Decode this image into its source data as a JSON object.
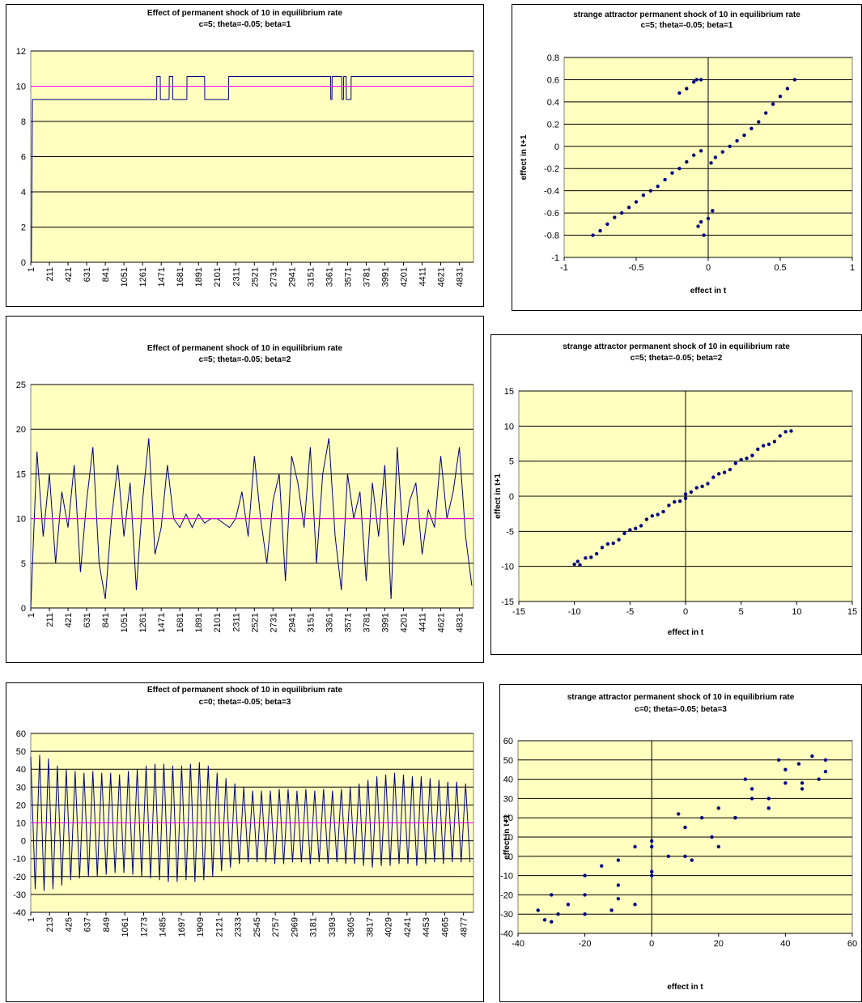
{
  "chart_data": [
    {
      "type": "line",
      "title": "Effect of permanent shock of 10 in equilibrium rate",
      "subtitle": "c=5; theta=-0.05; beta=1",
      "series": [
        {
          "color": "#000080",
          "x": [
            1,
            8,
            20,
            1420,
            1422,
            1460,
            1462,
            1560,
            1562,
            1600,
            1602,
            1760,
            1762,
            1960,
            1962,
            2230,
            2232,
            3380,
            3382,
            3395,
            3397,
            3505,
            3507,
            3525,
            3527,
            3555,
            3557,
            3610,
            3612,
            4990
          ],
          "values": [
            0,
            0,
            9.25,
            9.25,
            10.55,
            10.55,
            9.25,
            9.25,
            10.55,
            10.55,
            9.25,
            9.25,
            10.55,
            10.55,
            9.25,
            9.25,
            10.55,
            10.55,
            9.25,
            9.25,
            10.55,
            10.55,
            9.25,
            9.25,
            10.55,
            10.55,
            9.25,
            9.25,
            10.55,
            10.55
          ]
        },
        {
          "color": "#ff00ff",
          "x": [
            1,
            4990
          ],
          "values": [
            10,
            10
          ]
        }
      ],
      "xlim": [
        1,
        4990
      ],
      "ylim": [
        0,
        12
      ],
      "xticks": [
        1,
        211,
        421,
        631,
        841,
        1051,
        1261,
        1471,
        1681,
        1891,
        2101,
        2311,
        2521,
        2731,
        2941,
        3151,
        3361,
        3571,
        3781,
        3991,
        4201,
        4411,
        4621,
        4831
      ],
      "yticks": [
        0,
        2,
        4,
        6,
        8,
        10,
        12
      ],
      "grid": true
    },
    {
      "type": "scatter",
      "title": "strange attractor permanent shock of 10 in equilibrium rate",
      "subtitle": "c=5; theta=-0.05; beta=1",
      "xlabel": "effect in t",
      "ylabel": "effect in t+1",
      "series": [
        {
          "color": "#000080",
          "x": [
            -0.8,
            -0.75,
            -0.7,
            -0.65,
            -0.6,
            -0.55,
            -0.5,
            -0.45,
            -0.4,
            -0.35,
            -0.3,
            -0.25,
            -0.2,
            -0.15,
            -0.1,
            -0.05,
            0.02,
            0.05,
            0.1,
            0.15,
            0.2,
            0.25,
            0.3,
            0.35,
            0.4,
            0.45,
            0.5,
            0.55,
            0.6,
            -0.2,
            -0.15,
            -0.1,
            -0.08,
            -0.05,
            -0.03,
            -0.07,
            -0.05,
            0,
            0.03
          ],
          "values": [
            -0.8,
            -0.76,
            -0.7,
            -0.64,
            -0.6,
            -0.55,
            -0.5,
            -0.44,
            -0.4,
            -0.36,
            -0.3,
            -0.24,
            -0.2,
            -0.14,
            -0.08,
            -0.04,
            -0.15,
            -0.1,
            -0.05,
            0.0,
            0.05,
            0.1,
            0.16,
            0.22,
            0.3,
            0.38,
            0.45,
            0.52,
            0.6,
            0.48,
            0.52,
            0.58,
            0.6,
            0.6,
            -0.8,
            -0.72,
            -0.68,
            -0.65,
            -0.58
          ]
        }
      ],
      "xlim": [
        -1,
        1
      ],
      "ylim": [
        -1,
        0.8
      ],
      "xticks": [
        -1,
        -0.5,
        0,
        0.5,
        1
      ],
      "yticks": [
        -1,
        -0.8,
        -0.6,
        -0.4,
        -0.2,
        0,
        0.2,
        0.4,
        0.6,
        0.8
      ],
      "grid": true
    },
    {
      "type": "line",
      "title": "Effect of permanent shock of 10 in equilibrium rate",
      "subtitle": "c=5; theta=-0.05; beta=2",
      "series": [
        {
          "color": "#000080",
          "x": [
            1,
            71,
            141,
            211,
            281,
            351,
            421,
            491,
            561,
            631,
            701,
            771,
            841,
            911,
            981,
            1051,
            1121,
            1191,
            1261,
            1331,
            1401,
            1471,
            1541,
            1611,
            1681,
            1751,
            1821,
            1891,
            1961,
            2031,
            2101,
            2171,
            2241,
            2311,
            2381,
            2451,
            2521,
            2591,
            2661,
            2731,
            2801,
            2871,
            2941,
            3011,
            3081,
            3151,
            3221,
            3291,
            3361,
            3431,
            3501,
            3571,
            3641,
            3711,
            3781,
            3851,
            3921,
            3991,
            4061,
            4131,
            4201,
            4271,
            4341,
            4411,
            4481,
            4551,
            4621,
            4691,
            4761,
            4831,
            4901,
            4971
          ],
          "values": [
            0,
            17.5,
            8,
            15,
            5,
            13,
            9,
            16,
            4,
            12,
            18,
            5,
            1,
            10,
            16,
            8,
            14,
            2,
            12,
            19,
            6,
            9,
            16,
            10,
            9,
            10.5,
            9,
            10.5,
            9.5,
            10,
            10,
            9.5,
            9,
            10,
            13,
            8,
            17,
            10,
            5,
            12,
            15,
            3,
            17,
            14,
            9,
            18,
            5,
            15,
            19,
            8,
            2,
            15,
            10,
            13,
            3,
            14,
            8,
            16,
            1,
            18,
            7,
            12,
            14,
            6,
            11,
            9,
            17,
            10,
            13,
            18,
            8,
            2.5
          ]
        },
        {
          "color": "#ff00ff",
          "x": [
            1,
            4990
          ],
          "values": [
            10,
            10
          ]
        }
      ],
      "xlim": [
        1,
        4990
      ],
      "ylim": [
        0,
        25
      ],
      "xticks": [
        1,
        211,
        421,
        631,
        841,
        1051,
        1261,
        1471,
        1681,
        1891,
        2101,
        2311,
        2521,
        2731,
        2941,
        3151,
        3361,
        3571,
        3781,
        3991,
        4201,
        4411,
        4621,
        4831
      ],
      "yticks": [
        0,
        5,
        10,
        15,
        20,
        25
      ],
      "grid": true
    },
    {
      "type": "scatter",
      "title": "strange attractor permanent shock of 10 in equilibrium rate",
      "subtitle": "c=5; theta=-0.05; beta=2",
      "xlabel": "effect in t",
      "ylabel": "effect in t+1",
      "series": [
        {
          "color": "#000080",
          "x": [
            -10,
            -9.7,
            -9.5,
            -9,
            -8.5,
            -8,
            -7.5,
            -7,
            -6.5,
            -6,
            -5.5,
            -5,
            -4.5,
            -4,
            -3.5,
            -3,
            -2.5,
            -2,
            -1.5,
            -1,
            -0.5,
            0,
            0,
            0.5,
            1,
            1.5,
            2,
            2.5,
            3,
            3.5,
            4,
            4.5,
            5,
            5.5,
            6,
            6.5,
            7,
            7.5,
            8,
            8.5,
            9,
            9.5
          ],
          "values": [
            -9.7,
            -9.3,
            -9.8,
            -8.8,
            -8.7,
            -8.2,
            -7.3,
            -6.8,
            -6.7,
            -6.2,
            -5.3,
            -4.8,
            -4.6,
            -4.2,
            -3.3,
            -2.8,
            -2.6,
            -2.2,
            -1.3,
            -0.8,
            -0.7,
            -0.3,
            0.3,
            0.6,
            1.2,
            1.4,
            1.8,
            2.7,
            3.2,
            3.4,
            3.8,
            4.7,
            5.2,
            5.4,
            5.8,
            6.7,
            7.2,
            7.4,
            7.8,
            8.6,
            9.2,
            9.3
          ]
        }
      ],
      "xlim": [
        -15,
        15
      ],
      "ylim": [
        -15,
        15
      ],
      "xticks": [
        -15,
        -10,
        -5,
        0,
        5,
        10,
        15
      ],
      "yticks": [
        -15,
        -10,
        -5,
        0,
        5,
        10,
        15
      ],
      "grid": true
    },
    {
      "type": "line",
      "title": "Effect of permanent shock of 10 in equilibrium rate",
      "subtitle": "c=0; theta=-0.05; beta=3",
      "series": [
        {
          "color": "#000080",
          "x": [
            1,
            51,
            101,
            151,
            201,
            251,
            301,
            351,
            401,
            451,
            501,
            551,
            601,
            651,
            701,
            751,
            801,
            851,
            901,
            951,
            1001,
            1051,
            1101,
            1151,
            1201,
            1251,
            1301,
            1351,
            1401,
            1451,
            1501,
            1551,
            1601,
            1651,
            1701,
            1751,
            1801,
            1851,
            1901,
            1951,
            2001,
            2051,
            2101,
            2151,
            2201,
            2251,
            2301,
            2351,
            2401,
            2451,
            2501,
            2551,
            2601,
            2651,
            2701,
            2751,
            2801,
            2851,
            2901,
            2951,
            3001,
            3051,
            3101,
            3151,
            3201,
            3251,
            3301,
            3351,
            3401,
            3451,
            3501,
            3551,
            3601,
            3651,
            3701,
            3751,
            3801,
            3851,
            3901,
            3951,
            4001,
            4051,
            4101,
            4151,
            4201,
            4251,
            4301,
            4351,
            4401,
            4451,
            4501,
            4551,
            4601,
            4651,
            4701,
            4751,
            4801,
            4851,
            4901,
            4951
          ],
          "values": [
            47,
            -27,
            48,
            -28,
            46,
            -27,
            42,
            -25,
            40,
            -22,
            39,
            -21,
            38,
            -20,
            39,
            -20,
            38,
            -19,
            38,
            -18,
            37,
            -18,
            39,
            -19,
            40,
            -20,
            42,
            -21,
            43,
            -22,
            43,
            -23,
            42,
            -23,
            42,
            -22,
            43,
            -23,
            44,
            -22,
            42,
            -20,
            38,
            -17,
            35,
            -15,
            32,
            -13,
            30,
            -12,
            28,
            -12,
            28,
            -12,
            28,
            -13,
            29,
            -13,
            29,
            -12,
            28,
            -12,
            29,
            -13,
            28,
            -12,
            29,
            -13,
            28,
            -12,
            29,
            -13,
            30,
            -13,
            32,
            -14,
            34,
            -15,
            36,
            -14,
            37,
            -14,
            38,
            -13,
            37,
            -13,
            36,
            -14,
            36,
            -13,
            35,
            -12,
            34,
            -13,
            33,
            -12,
            33,
            -12,
            32,
            -12
          ]
        },
        {
          "color": "#ff00ff",
          "x": [
            1,
            4990
          ],
          "values": [
            10,
            10
          ]
        }
      ],
      "xlim": [
        1,
        4990
      ],
      "ylim": [
        -40,
        60
      ],
      "xticks": [
        1,
        213,
        425,
        637,
        849,
        1061,
        1273,
        1485,
        1697,
        1909,
        2121,
        2333,
        2545,
        2757,
        2969,
        3181,
        3393,
        3605,
        3817,
        4029,
        4241,
        4453,
        4665,
        4877
      ],
      "yticks": [
        -40,
        -30,
        -20,
        -10,
        0,
        10,
        20,
        30,
        40,
        50,
        60
      ],
      "grid": true
    },
    {
      "type": "scatter",
      "title": "strange attractor permanent shock of 10 in equilibrium rate",
      "subtitle": "c=0; theta=-0.05; beta=3",
      "xlabel": "effect in t",
      "ylabel": "effect in t+1",
      "series": [
        {
          "color": "#000080",
          "x": [
            -30,
            -34,
            -30,
            -20,
            -10,
            0,
            10,
            20,
            30,
            40,
            48,
            52,
            52,
            45,
            35,
            25,
            18,
            10,
            0,
            -10,
            -20,
            -20,
            -10,
            0,
            5,
            0,
            -5,
            -15,
            20,
            25,
            30,
            40,
            35,
            45,
            15,
            28,
            38,
            -5,
            -25,
            -12,
            -28,
            -32,
            8,
            12,
            44,
            50
          ],
          "values": [
            -34,
            -28,
            -20,
            -10,
            -2,
            5,
            15,
            25,
            35,
            45,
            52,
            50,
            44,
            38,
            30,
            20,
            10,
            0,
            -10,
            -22,
            -30,
            -20,
            -15,
            -8,
            0,
            8,
            5,
            -5,
            5,
            20,
            30,
            38,
            25,
            35,
            20,
            40,
            50,
            -25,
            -25,
            -28,
            -30,
            -33,
            22,
            -2,
            48,
            40
          ]
        }
      ],
      "xlim": [
        -40,
        60
      ],
      "ylim": [
        -40,
        60
      ],
      "xticks": [
        -40,
        -20,
        0,
        20,
        40,
        60
      ],
      "yticks": [
        -40,
        -30,
        -20,
        -10,
        0,
        10,
        20,
        30,
        40,
        50,
        60
      ],
      "grid": true
    }
  ]
}
